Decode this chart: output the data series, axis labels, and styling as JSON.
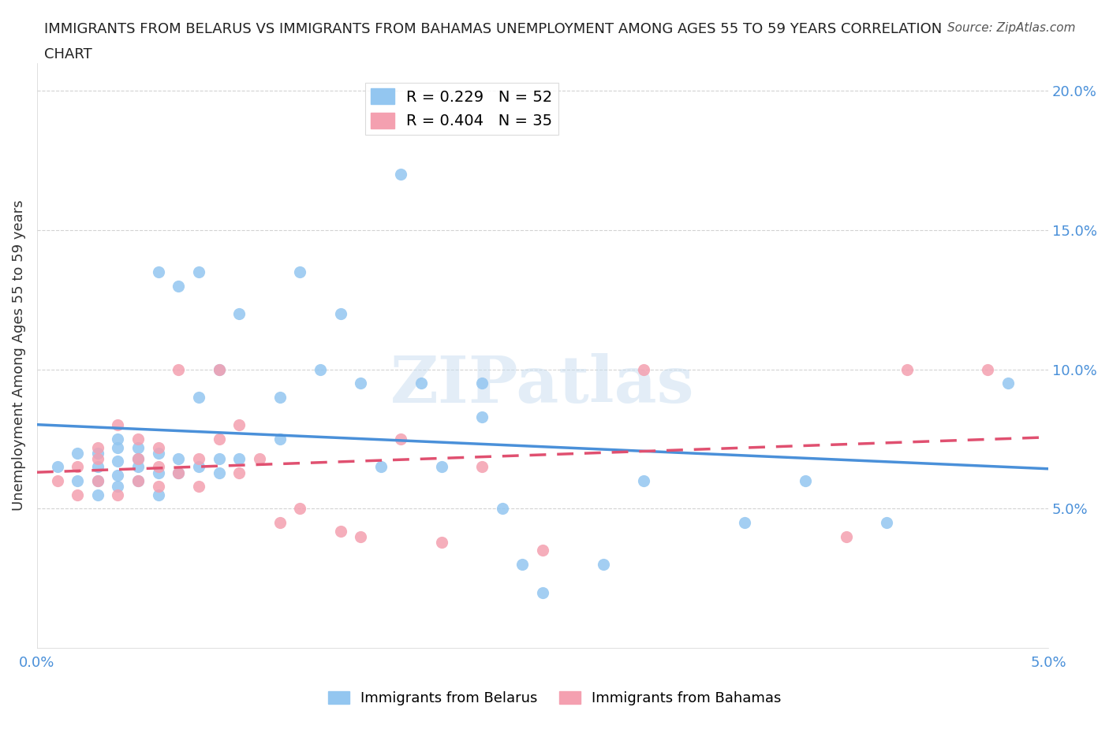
{
  "title_line1": "IMMIGRANTS FROM BELARUS VS IMMIGRANTS FROM BAHAMAS UNEMPLOYMENT AMONG AGES 55 TO 59 YEARS CORRELATION",
  "title_line2": "CHART",
  "source": "Source: ZipAtlas.com",
  "xlabel": "",
  "ylabel": "Unemployment Among Ages 55 to 59 years",
  "xlim": [
    0.0,
    0.05
  ],
  "ylim": [
    0.0,
    0.21
  ],
  "xticks": [
    0.0,
    0.01,
    0.02,
    0.03,
    0.04,
    0.05
  ],
  "xtick_labels": [
    "0.0%",
    "",
    "",
    "",
    "",
    "5.0%"
  ],
  "ytick_labels": [
    "5.0%",
    "10.0%",
    "15.0%",
    "20.0%"
  ],
  "yticks": [
    0.05,
    0.1,
    0.15,
    0.2
  ],
  "legend_belarus": "R = 0.229   N = 52",
  "legend_bahamas": "R = 0.404   N = 35",
  "color_belarus": "#93c6f0",
  "color_bahamas": "#f4a0b0",
  "line_color_belarus": "#4a90d9",
  "line_color_bahamas": "#e05070",
  "watermark": "ZIPatlas",
  "belarus_scatter_x": [
    0.001,
    0.002,
    0.002,
    0.003,
    0.003,
    0.003,
    0.003,
    0.004,
    0.004,
    0.004,
    0.004,
    0.004,
    0.005,
    0.005,
    0.005,
    0.005,
    0.006,
    0.006,
    0.006,
    0.006,
    0.007,
    0.007,
    0.007,
    0.008,
    0.008,
    0.008,
    0.009,
    0.009,
    0.009,
    0.01,
    0.01,
    0.012,
    0.012,
    0.013,
    0.014,
    0.015,
    0.016,
    0.017,
    0.018,
    0.019,
    0.02,
    0.022,
    0.022,
    0.023,
    0.024,
    0.025,
    0.028,
    0.03,
    0.035,
    0.038,
    0.042,
    0.048
  ],
  "belarus_scatter_y": [
    0.065,
    0.06,
    0.07,
    0.055,
    0.06,
    0.065,
    0.07,
    0.058,
    0.062,
    0.067,
    0.072,
    0.075,
    0.06,
    0.065,
    0.068,
    0.072,
    0.055,
    0.063,
    0.07,
    0.135,
    0.063,
    0.068,
    0.13,
    0.065,
    0.09,
    0.135,
    0.063,
    0.068,
    0.1,
    0.068,
    0.12,
    0.075,
    0.09,
    0.135,
    0.1,
    0.12,
    0.095,
    0.065,
    0.17,
    0.095,
    0.065,
    0.083,
    0.095,
    0.05,
    0.03,
    0.02,
    0.03,
    0.06,
    0.045,
    0.06,
    0.045,
    0.095
  ],
  "bahamas_scatter_x": [
    0.001,
    0.002,
    0.002,
    0.003,
    0.003,
    0.003,
    0.004,
    0.004,
    0.005,
    0.005,
    0.005,
    0.006,
    0.006,
    0.006,
    0.007,
    0.007,
    0.008,
    0.008,
    0.009,
    0.009,
    0.01,
    0.01,
    0.011,
    0.012,
    0.013,
    0.015,
    0.016,
    0.018,
    0.02,
    0.022,
    0.025,
    0.03,
    0.04,
    0.043,
    0.047
  ],
  "bahamas_scatter_y": [
    0.06,
    0.055,
    0.065,
    0.06,
    0.068,
    0.072,
    0.055,
    0.08,
    0.06,
    0.068,
    0.075,
    0.058,
    0.065,
    0.072,
    0.063,
    0.1,
    0.058,
    0.068,
    0.075,
    0.1,
    0.063,
    0.08,
    0.068,
    0.045,
    0.05,
    0.042,
    0.04,
    0.075,
    0.038,
    0.065,
    0.035,
    0.1,
    0.04,
    0.1,
    0.1
  ],
  "figsize": [
    14.06,
    9.3
  ],
  "dpi": 100
}
